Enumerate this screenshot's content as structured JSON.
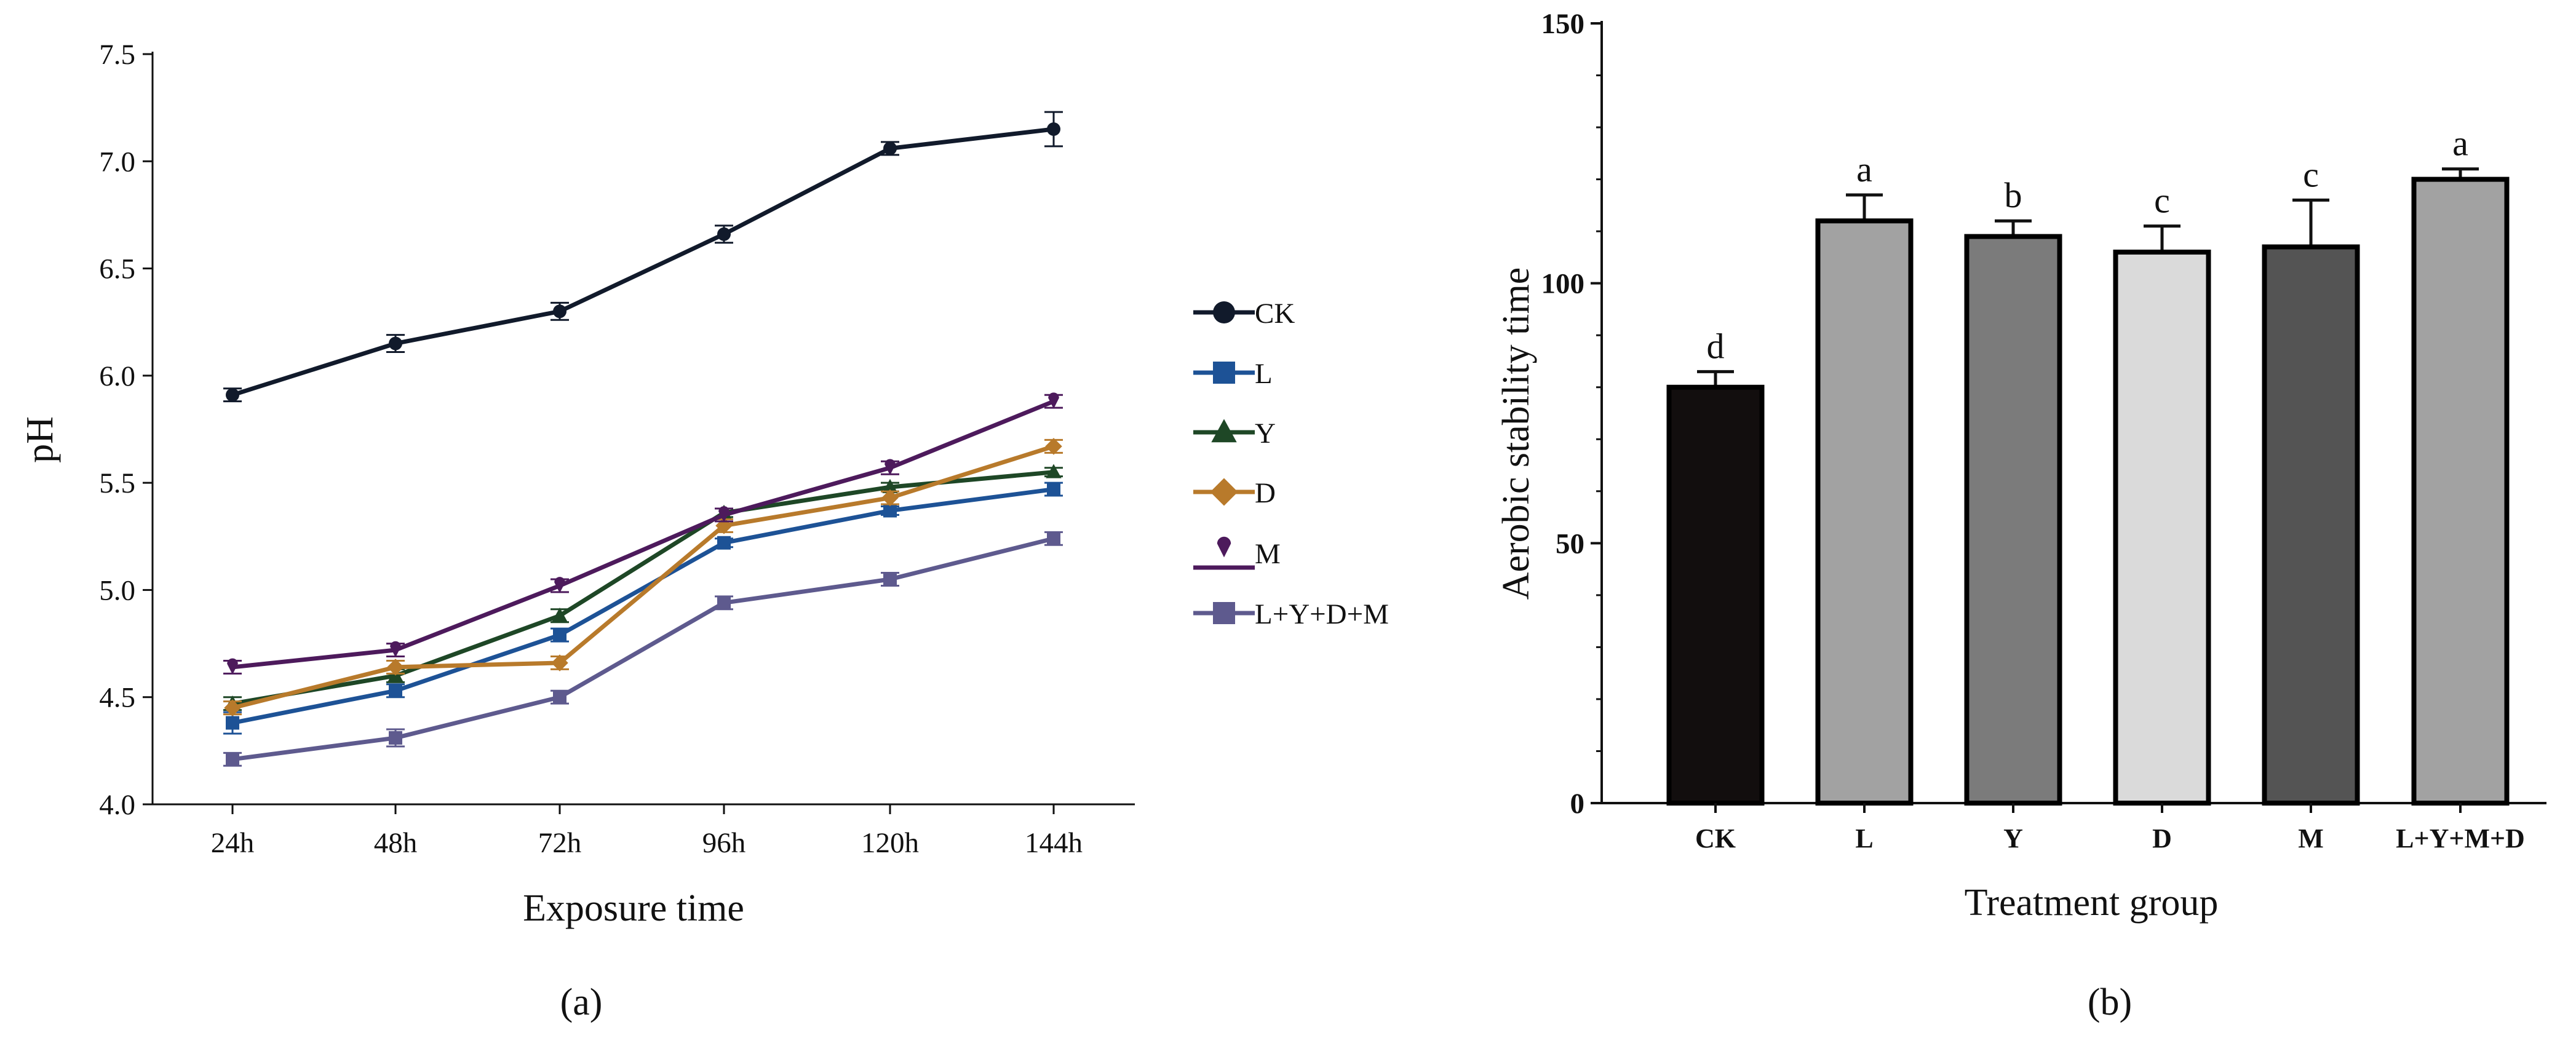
{
  "chart_data": [
    {
      "type": "line",
      "panel_label": "(a)",
      "xlabel": "Exposure time",
      "ylabel": "pH",
      "categories": [
        "24h",
        "48h",
        "72h",
        "96h",
        "120h",
        "144h"
      ],
      "ylim": [
        4.0,
        7.5
      ],
      "yticks": [
        "4.0",
        "4.5",
        "5.0",
        "5.5",
        "6.0",
        "6.5",
        "7.0",
        "7.5"
      ],
      "grid": false,
      "legend_position": "right",
      "series": [
        {
          "name": "CK",
          "marker": "circle",
          "color": "#111a2b",
          "values": [
            5.91,
            6.15,
            6.3,
            6.66,
            7.06,
            7.15
          ],
          "errors": [
            0.03,
            0.04,
            0.04,
            0.04,
            0.03,
            0.08
          ]
        },
        {
          "name": "L",
          "marker": "square",
          "color": "#1d5296",
          "values": [
            4.38,
            4.53,
            4.79,
            5.22,
            5.37,
            5.47
          ],
          "errors": [
            0.05,
            0.03,
            0.03,
            0.02,
            0.02,
            0.03
          ]
        },
        {
          "name": "Y",
          "marker": "triangle",
          "color": "#1e4726",
          "values": [
            4.47,
            4.6,
            4.88,
            5.36,
            5.48,
            5.55
          ],
          "errors": [
            0.03,
            0.03,
            0.03,
            0.02,
            0.02,
            0.02
          ]
        },
        {
          "name": "D",
          "marker": "diamond",
          "color": "#b87a2b",
          "values": [
            4.45,
            4.64,
            4.66,
            5.3,
            5.43,
            5.67
          ],
          "errors": [
            0.03,
            0.03,
            0.03,
            0.03,
            0.03,
            0.03
          ]
        },
        {
          "name": "M",
          "marker": "pin",
          "color": "#4d1a5c",
          "values": [
            4.64,
            4.72,
            5.02,
            5.35,
            5.57,
            5.88
          ],
          "errors": [
            0.03,
            0.03,
            0.03,
            0.03,
            0.03,
            0.03
          ]
        },
        {
          "name": "L+Y+D+M",
          "marker": "square",
          "color": "#5e5a8e",
          "values": [
            4.21,
            4.31,
            4.5,
            4.94,
            5.05,
            5.24
          ],
          "errors": [
            0.03,
            0.04,
            0.03,
            0.03,
            0.03,
            0.03
          ]
        }
      ]
    },
    {
      "type": "bar",
      "panel_label": "(b)",
      "xlabel": "Treatment group",
      "ylabel": "Aerobic stability time",
      "categories": [
        "CK",
        "L",
        "Y",
        "D",
        "M",
        "L+Y+M+D"
      ],
      "values": [
        80,
        112,
        109,
        106,
        107,
        120
      ],
      "errors": [
        3,
        5,
        3,
        5,
        9,
        2
      ],
      "significance": [
        "d",
        "a",
        "b",
        "c",
        "c",
        "a"
      ],
      "colors": [
        "#120e0e",
        "#a2a2a2",
        "#7b7b7b",
        "#dadada",
        "#545454",
        "#a2a2a2"
      ],
      "ylim": [
        0,
        150
      ],
      "yticks": [
        "0",
        "50",
        "100",
        "150"
      ],
      "grid": false
    }
  ]
}
